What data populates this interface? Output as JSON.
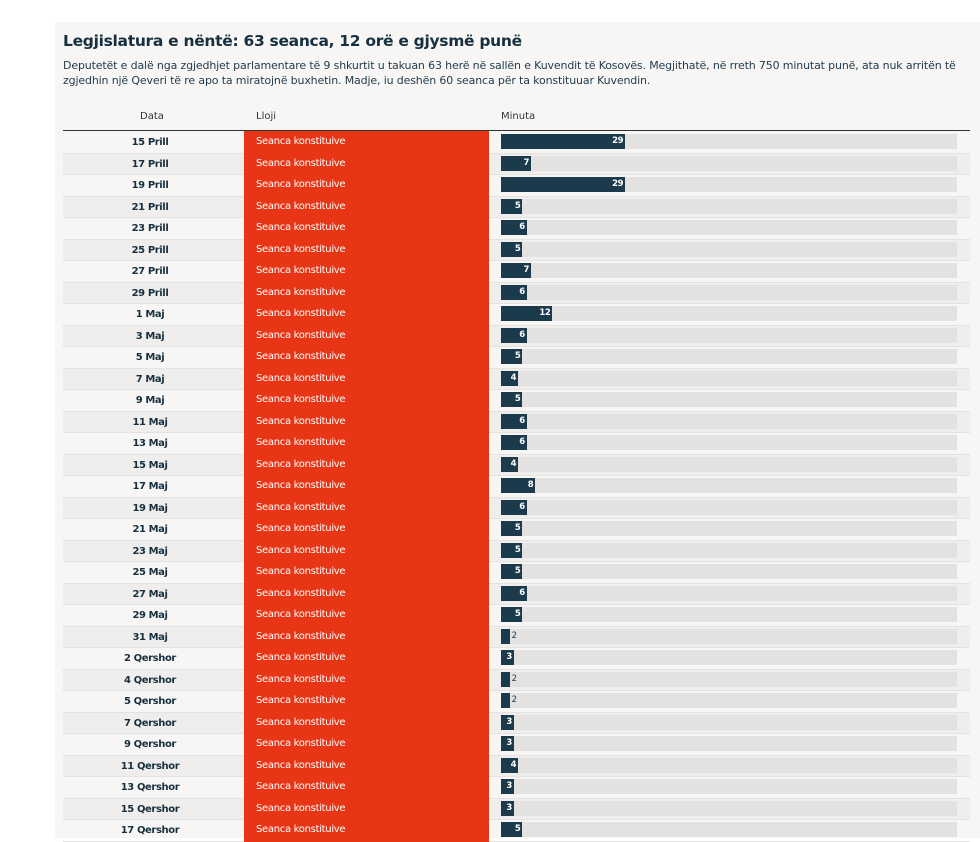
{
  "header": {
    "title": "Legjislatura e nëntë: 63 seanca, 12 orë e gjysmë punë",
    "subtitle": "Deputetët e dalë nga zgjedhjet parlamentare të 9 shkurtit u takuan 63 herë në sallën e Kuvendit të Kosovës. Megjithatë, në rreth 750 minutat punë, ata nuk arritën të zgjedhin një Qeveri të re apo ta miratojnë buxhetin. Madje, iu deshën 60 seanca për ta konstituuar Kuvendin."
  },
  "columns": {
    "date": "Data",
    "type": "Lloji",
    "minutes": "Minuta"
  },
  "colors": {
    "type_bg": "#e83515",
    "bar": "#1b3a4c",
    "track": "#e3e2e0"
  },
  "chart_data": {
    "type": "bar",
    "title": "Legjislatura e nëntë: 63 seanca, 12 orë e gjysmë punë",
    "xlabel": "Minuta",
    "ylabel": "Data",
    "xlim": [
      0,
      106.5
    ],
    "categories": [
      "15 Prill",
      "17 Prill",
      "19 Prill",
      "21 Prill",
      "23 Prill",
      "25 Prill",
      "27 Prill",
      "29 Prill",
      "1 Maj",
      "3 Maj",
      "5 Maj",
      "7 Maj",
      "9 Maj",
      "11 Maj",
      "13 Maj",
      "15 Maj",
      "17 Maj",
      "19 Maj",
      "21 Maj",
      "23 Maj",
      "25 Maj",
      "27 Maj",
      "29 Maj",
      "31 Maj",
      "2 Qershor",
      "4 Qershor",
      "5 Qershor",
      "7 Qershor",
      "9 Qershor",
      "11 Qershor",
      "13 Qershor",
      "15 Qershor",
      "17 Qershor"
    ],
    "types": [
      "Seanca konstituive",
      "Seanca konstituive",
      "Seanca konstituive",
      "Seanca konstituive",
      "Seanca konstituive",
      "Seanca konstituive",
      "Seanca konstituive",
      "Seanca konstituive",
      "Seanca konstituive",
      "Seanca konstituive",
      "Seanca konstituive",
      "Seanca konstituive",
      "Seanca konstituive",
      "Seanca konstituive",
      "Seanca konstituive",
      "Seanca konstituive",
      "Seanca konstituive",
      "Seanca konstituive",
      "Seanca konstituive",
      "Seanca konstituive",
      "Seanca konstituive",
      "Seanca konstituive",
      "Seanca konstituive",
      "Seanca konstituive",
      "Seanca konstituive",
      "Seanca konstituive",
      "Seanca konstituive",
      "Seanca konstituive",
      "Seanca konstituive",
      "Seanca konstituive",
      "Seanca konstituive",
      "Seanca konstituive",
      "Seanca konstituive"
    ],
    "values": [
      29,
      7,
      29,
      5,
      6,
      5,
      7,
      6,
      12,
      6,
      5,
      4,
      5,
      6,
      6,
      4,
      8,
      6,
      5,
      5,
      5,
      6,
      5,
      2,
      3,
      2,
      2,
      3,
      3,
      4,
      3,
      3,
      5
    ]
  }
}
